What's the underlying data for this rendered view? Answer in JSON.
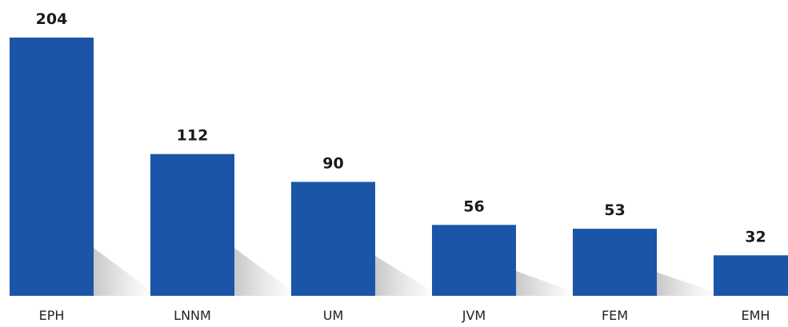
{
  "chart_data": {
    "type": "bar",
    "title": "",
    "xlabel": "",
    "ylabel": "",
    "categories": [
      "EPH",
      "LNNM",
      "UM",
      "JVM",
      "FEM",
      "EMH"
    ],
    "values": [
      204,
      112,
      90,
      56,
      53,
      32
    ],
    "ylim": [
      0,
      204
    ],
    "grid": false,
    "legend": "none",
    "bar_color": "#1a55a8"
  }
}
